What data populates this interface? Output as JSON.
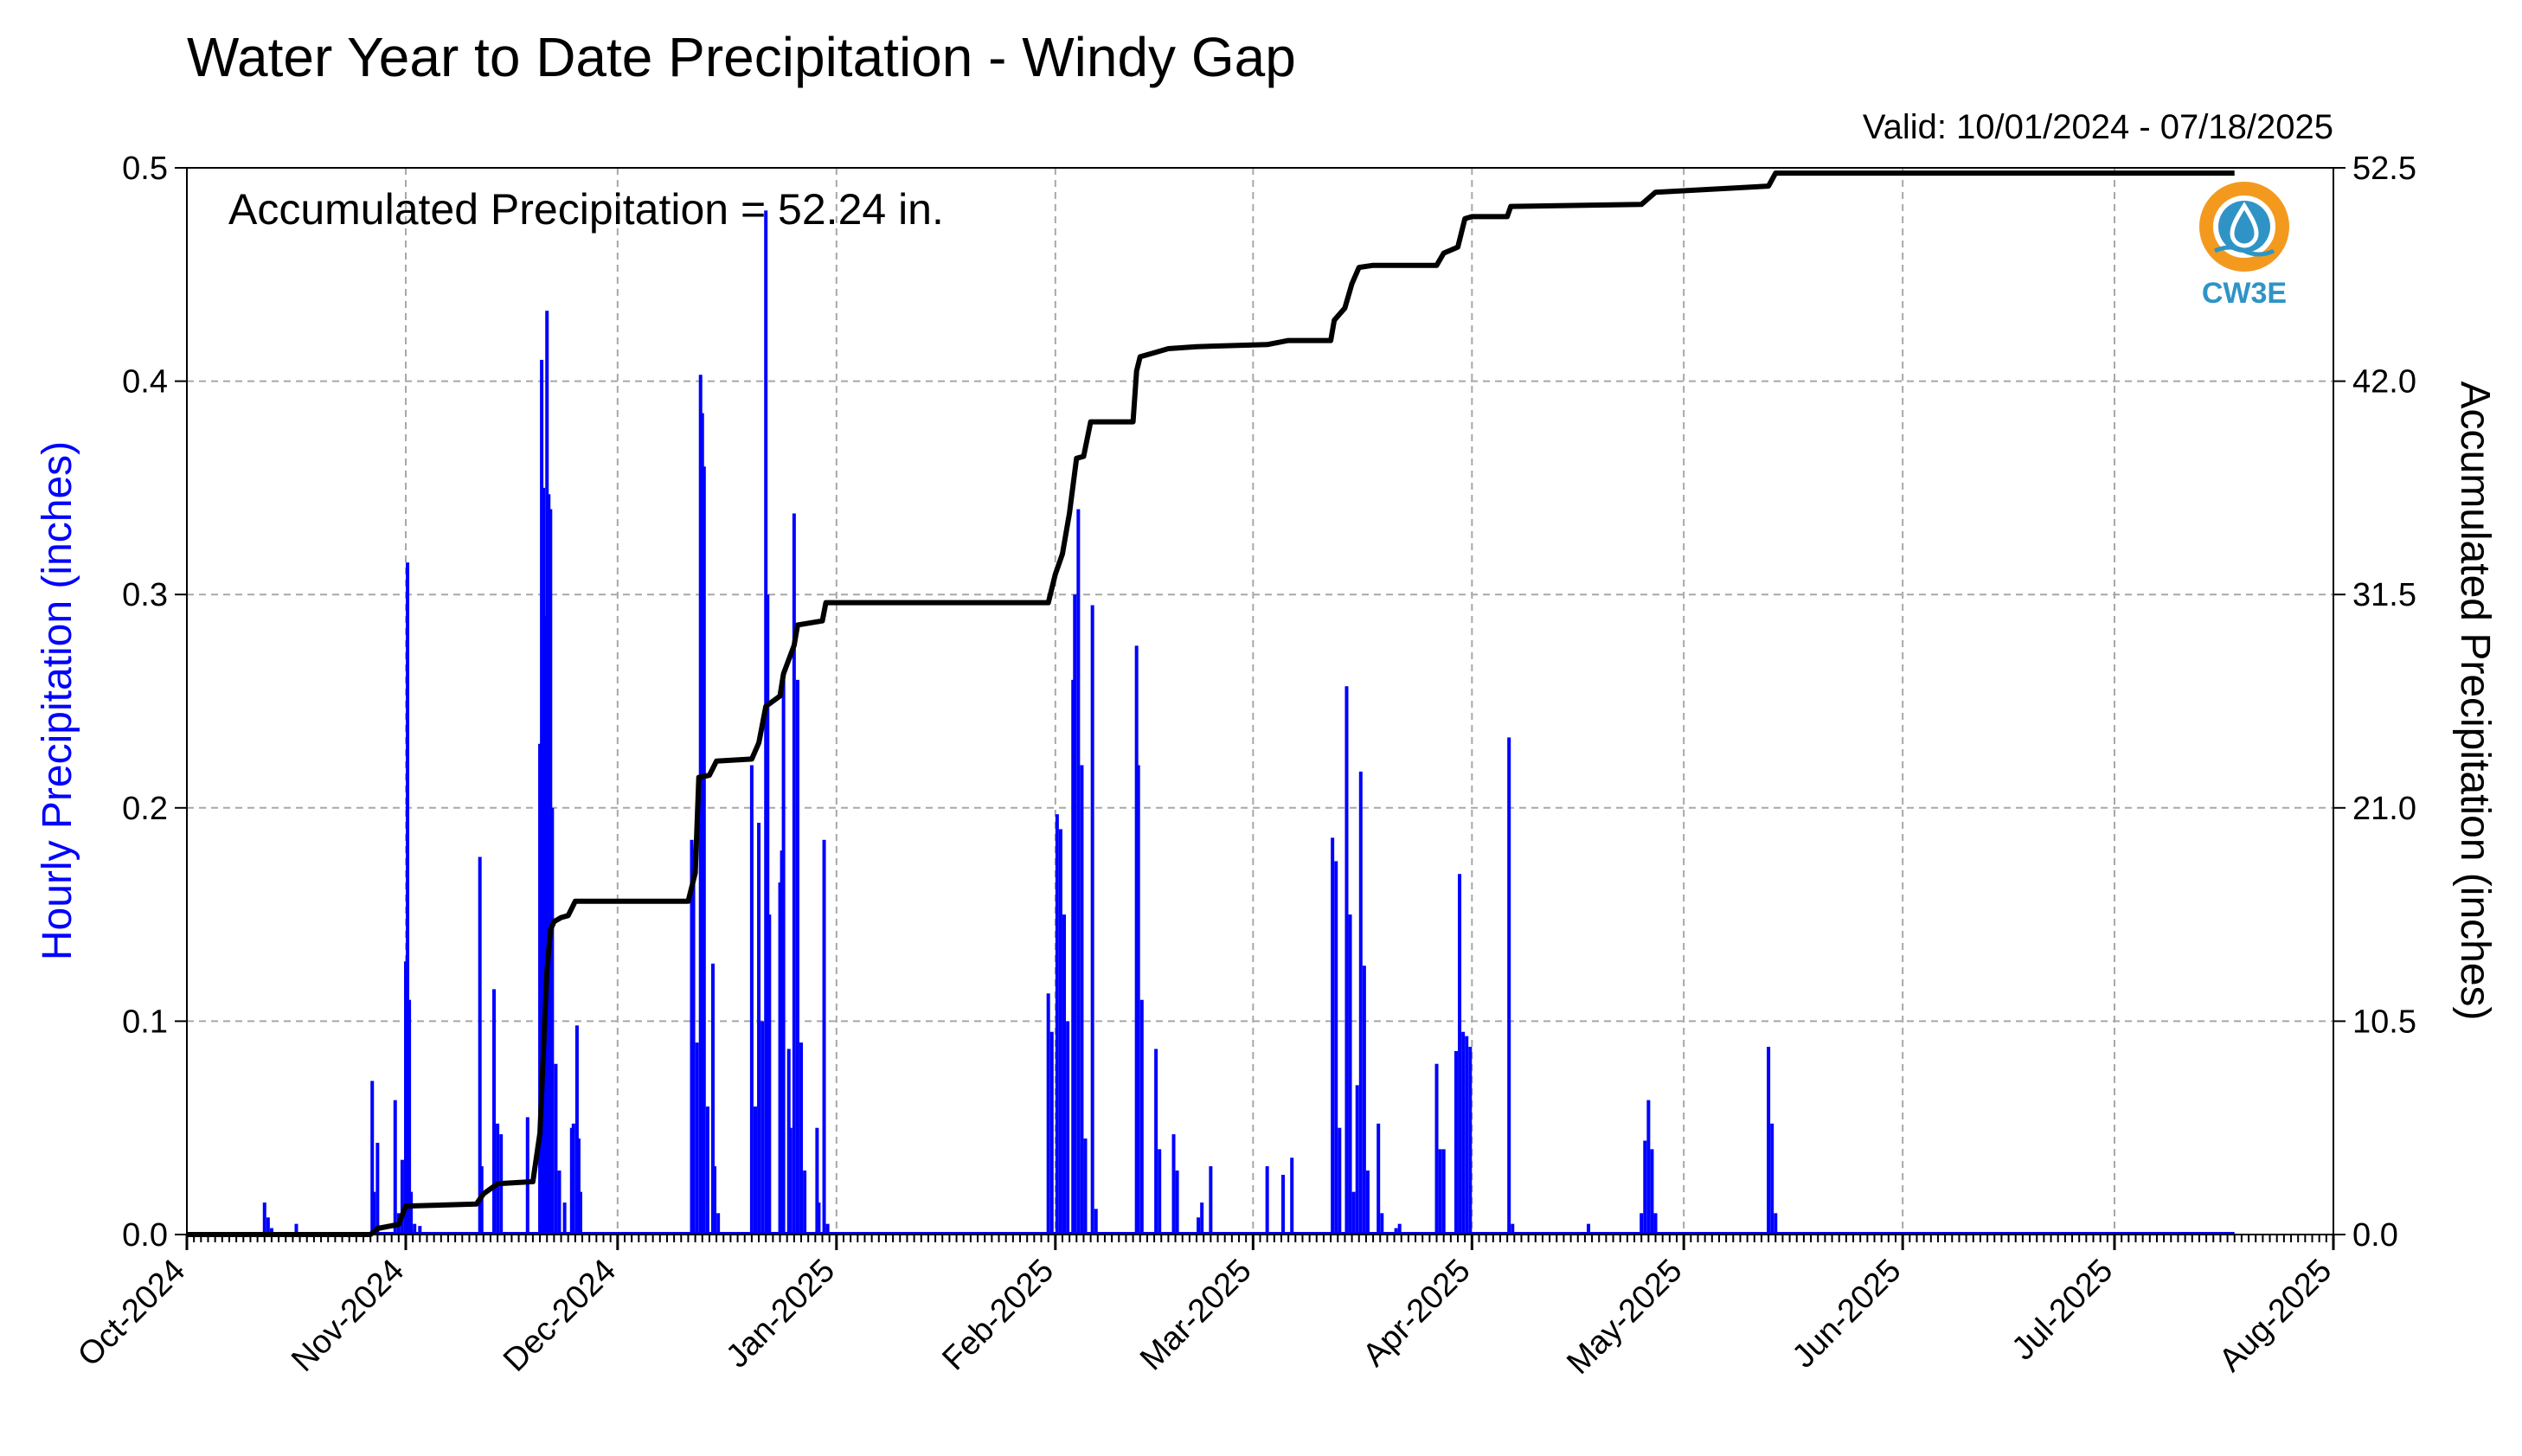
{
  "chart_data": {
    "type": "bar",
    "title": "Water Year to Date Precipitation - Windy Gap",
    "subtitle": "Valid: 10/01/2024 - 07/18/2025",
    "annotation": "Accumulated Precipitation = 52.24 in.",
    "ylabel": "Hourly Precipitation (inches)",
    "y2label": "Accumulated Precipitation (inches)",
    "ylim": [
      0,
      0.5
    ],
    "y2lim": [
      0,
      52.5
    ],
    "xlim": [
      "2024-10-01",
      "2025-08-01"
    ],
    "yticks": [
      "0.0",
      "0.1",
      "0.2",
      "0.3",
      "0.4",
      "0.5"
    ],
    "y2ticks": [
      "0.0",
      "10.5",
      "21.0",
      "31.5",
      "42.0",
      "52.5"
    ],
    "xticks": [
      {
        "date": "2024-10-01",
        "label": "Oct-2024"
      },
      {
        "date": "2024-11-01",
        "label": "Nov-2024"
      },
      {
        "date": "2024-12-01",
        "label": "Dec-2024"
      },
      {
        "date": "2025-01-01",
        "label": "Jan-2025"
      },
      {
        "date": "2025-02-01",
        "label": "Feb-2025"
      },
      {
        "date": "2025-03-01",
        "label": "Mar-2025"
      },
      {
        "date": "2025-04-01",
        "label": "Apr-2025"
      },
      {
        "date": "2025-05-01",
        "label": "May-2025"
      },
      {
        "date": "2025-06-01",
        "label": "Jun-2025"
      },
      {
        "date": "2025-07-01",
        "label": "Jul-2025"
      },
      {
        "date": "2025-08-01",
        "label": "Aug-2025"
      }
    ],
    "grid": true,
    "series": [
      {
        "style": "bars",
        "color": "#0000ff",
        "axis": "left",
        "points": [
          [
            "2024-10-12T00",
            0.015
          ],
          [
            "2024-10-12T12",
            0.008
          ],
          [
            "2024-10-13T00",
            0.003
          ],
          [
            "2024-10-16T12",
            0.005
          ],
          [
            "2024-10-27T06",
            0.072
          ],
          [
            "2024-10-27T12",
            0.02
          ],
          [
            "2024-10-28T00",
            0.043
          ],
          [
            "2024-10-30T12",
            0.063
          ],
          [
            "2024-10-31T00",
            0.01
          ],
          [
            "2024-10-31T12",
            0.035
          ],
          [
            "2024-11-01T00",
            0.128
          ],
          [
            "2024-11-01T06",
            0.315
          ],
          [
            "2024-11-01T12",
            0.11
          ],
          [
            "2024-11-01T18",
            0.02
          ],
          [
            "2024-11-02T06",
            0.005
          ],
          [
            "2024-11-03T00",
            0.004
          ],
          [
            "2024-11-11T12",
            0.177
          ],
          [
            "2024-11-11T18",
            0.032
          ],
          [
            "2024-11-13T12",
            0.115
          ],
          [
            "2024-11-14T00",
            0.052
          ],
          [
            "2024-11-14T12",
            0.047
          ],
          [
            "2024-11-18T06",
            0.055
          ],
          [
            "2024-11-20T00",
            0.23
          ],
          [
            "2024-11-20T06",
            0.41
          ],
          [
            "2024-11-20T12",
            0.35
          ],
          [
            "2024-11-20T18",
            0.29
          ],
          [
            "2024-11-21T00",
            0.433
          ],
          [
            "2024-11-21T06",
            0.347
          ],
          [
            "2024-11-21T12",
            0.34
          ],
          [
            "2024-11-21T18",
            0.2
          ],
          [
            "2024-11-22T06",
            0.08
          ],
          [
            "2024-11-22T18",
            0.03
          ],
          [
            "2024-11-23T12",
            0.015
          ],
          [
            "2024-11-24T12",
            0.05
          ],
          [
            "2024-11-24T18",
            0.052
          ],
          [
            "2024-11-25T06",
            0.098
          ],
          [
            "2024-11-25T12",
            0.045
          ],
          [
            "2024-11-25T18",
            0.02
          ],
          [
            "2024-12-11T12",
            0.185
          ],
          [
            "2024-12-11T18",
            0.17
          ],
          [
            "2024-12-12T06",
            0.09
          ],
          [
            "2024-12-12T18",
            0.403
          ],
          [
            "2024-12-13T00",
            0.385
          ],
          [
            "2024-12-13T06",
            0.36
          ],
          [
            "2024-12-13T18",
            0.06
          ],
          [
            "2024-12-14T12",
            0.127
          ],
          [
            "2024-12-14T18",
            0.032
          ],
          [
            "2024-12-15T06",
            0.01
          ],
          [
            "2024-12-20T00",
            0.22
          ],
          [
            "2024-12-20T12",
            0.06
          ],
          [
            "2024-12-21T00",
            0.193
          ],
          [
            "2024-12-21T12",
            0.1
          ],
          [
            "2024-12-22T00",
            0.48
          ],
          [
            "2024-12-22T06",
            0.3
          ],
          [
            "2024-12-22T12",
            0.15
          ],
          [
            "2024-12-24T00",
            0.165
          ],
          [
            "2024-12-24T06",
            0.18
          ],
          [
            "2024-12-24T12",
            0.26
          ],
          [
            "2024-12-25T06",
            0.087
          ],
          [
            "2024-12-25T12",
            0.05
          ],
          [
            "2024-12-26T00",
            0.338
          ],
          [
            "2024-12-26T12",
            0.26
          ],
          [
            "2024-12-27T00",
            0.09
          ],
          [
            "2024-12-27T12",
            0.03
          ],
          [
            "2024-12-29T06",
            0.05
          ],
          [
            "2024-12-29T12",
            0.015
          ],
          [
            "2024-12-30T06",
            0.185
          ],
          [
            "2024-12-30T18",
            0.005
          ],
          [
            "2025-01-31T00",
            0.113
          ],
          [
            "2025-01-31T12",
            0.095
          ],
          [
            "2025-02-01T06",
            0.197
          ],
          [
            "2025-02-01T18",
            0.19
          ],
          [
            "2025-02-02T06",
            0.15
          ],
          [
            "2025-02-02T18",
            0.1
          ],
          [
            "2025-02-03T12",
            0.26
          ],
          [
            "2025-02-03T18",
            0.3
          ],
          [
            "2025-02-04T06",
            0.34
          ],
          [
            "2025-02-04T18",
            0.22
          ],
          [
            "2025-02-05T06",
            0.045
          ],
          [
            "2025-02-06T06",
            0.295
          ],
          [
            "2025-02-06T18",
            0.012
          ],
          [
            "2025-02-12T12",
            0.276
          ],
          [
            "2025-02-12T18",
            0.22
          ],
          [
            "2025-02-13T06",
            0.11
          ],
          [
            "2025-02-15T06",
            0.087
          ],
          [
            "2025-02-15T18",
            0.04
          ],
          [
            "2025-02-17T18",
            0.047
          ],
          [
            "2025-02-18T06",
            0.03
          ],
          [
            "2025-02-21T06",
            0.008
          ],
          [
            "2025-02-21T18",
            0.015
          ],
          [
            "2025-02-23T00",
            0.032
          ],
          [
            "2025-03-03T00",
            0.032
          ],
          [
            "2025-03-05T06",
            0.028
          ],
          [
            "2025-03-06T12",
            0.036
          ],
          [
            "2025-03-12T06",
            0.186
          ],
          [
            "2025-03-12T18",
            0.175
          ],
          [
            "2025-03-13T06",
            0.05
          ],
          [
            "2025-03-14T06",
            0.257
          ],
          [
            "2025-03-14T18",
            0.15
          ],
          [
            "2025-03-15T06",
            0.02
          ],
          [
            "2025-03-15T18",
            0.07
          ],
          [
            "2025-03-16T06",
            0.217
          ],
          [
            "2025-03-16T18",
            0.126
          ],
          [
            "2025-03-17T06",
            0.03
          ],
          [
            "2025-03-18T18",
            0.052
          ],
          [
            "2025-03-19T06",
            0.01
          ],
          [
            "2025-03-21T06",
            0.003
          ],
          [
            "2025-03-21T18",
            0.005
          ],
          [
            "2025-03-27T00",
            0.08
          ],
          [
            "2025-03-27T12",
            0.04
          ],
          [
            "2025-03-28T00",
            0.04
          ],
          [
            "2025-03-29T18",
            0.086
          ],
          [
            "2025-03-30T06",
            0.169
          ],
          [
            "2025-03-30T18",
            0.095
          ],
          [
            "2025-03-31T06",
            0.093
          ],
          [
            "2025-03-31T18",
            0.088
          ],
          [
            "2025-04-06T06",
            0.233
          ],
          [
            "2025-04-06T18",
            0.005
          ],
          [
            "2025-04-17T12",
            0.005
          ],
          [
            "2025-04-25T00",
            0.01
          ],
          [
            "2025-04-25T12",
            0.044
          ],
          [
            "2025-04-26T00",
            0.063
          ],
          [
            "2025-04-26T12",
            0.04
          ],
          [
            "2025-04-27T00",
            0.01
          ],
          [
            "2025-05-13T00",
            0.088
          ],
          [
            "2025-05-13T12",
            0.052
          ],
          [
            "2025-05-14T00",
            0.01
          ]
        ]
      },
      {
        "style": "line",
        "color": "#000000",
        "axis": "right",
        "points": [
          [
            "2024-10-01",
            0.0
          ],
          [
            "2024-10-27",
            0.0
          ],
          [
            "2024-10-28",
            0.3
          ],
          [
            "2024-10-31",
            0.5
          ],
          [
            "2024-11-01",
            1.4
          ],
          [
            "2024-11-11",
            1.5
          ],
          [
            "2024-11-12",
            2.0
          ],
          [
            "2024-11-14",
            2.5
          ],
          [
            "2024-11-19",
            2.6
          ],
          [
            "2024-11-20",
            5.0
          ],
          [
            "2024-11-20T12",
            9.0
          ],
          [
            "2024-11-21",
            13.0
          ],
          [
            "2024-11-21T12",
            15.0
          ],
          [
            "2024-11-22",
            15.4
          ],
          [
            "2024-11-23",
            15.6
          ],
          [
            "2024-11-24",
            15.7
          ],
          [
            "2024-11-25",
            16.4
          ],
          [
            "2024-12-11",
            16.4
          ],
          [
            "2024-12-12",
            17.8
          ],
          [
            "2024-12-12T12",
            22.5
          ],
          [
            "2024-12-14",
            22.6
          ],
          [
            "2024-12-15",
            23.3
          ],
          [
            "2024-12-20",
            23.4
          ],
          [
            "2024-12-21",
            24.2
          ],
          [
            "2024-12-22",
            26.0
          ],
          [
            "2024-12-24",
            26.5
          ],
          [
            "2024-12-24T12",
            27.6
          ],
          [
            "2024-12-26",
            29.0
          ],
          [
            "2024-12-26T12",
            30.0
          ],
          [
            "2024-12-30",
            30.2
          ],
          [
            "2024-12-30T12",
            31.1
          ],
          [
            "2025-01-31",
            31.1
          ],
          [
            "2025-02-01",
            32.5
          ],
          [
            "2025-02-02",
            33.5
          ],
          [
            "2025-02-03",
            35.5
          ],
          [
            "2025-02-04",
            38.2
          ],
          [
            "2025-02-05",
            38.3
          ],
          [
            "2025-02-06",
            40.0
          ],
          [
            "2025-02-12",
            40.0
          ],
          [
            "2025-02-12T12",
            42.5
          ],
          [
            "2025-02-13",
            43.2
          ],
          [
            "2025-02-15",
            43.4
          ],
          [
            "2025-02-17",
            43.6
          ],
          [
            "2025-02-21",
            43.7
          ],
          [
            "2025-03-03",
            43.8
          ],
          [
            "2025-03-06",
            44.0
          ],
          [
            "2025-03-12",
            44.0
          ],
          [
            "2025-03-12T12",
            45.0
          ],
          [
            "2025-03-14",
            45.6
          ],
          [
            "2025-03-15",
            46.8
          ],
          [
            "2025-03-16",
            47.6
          ],
          [
            "2025-03-18",
            47.7
          ],
          [
            "2025-03-27",
            47.7
          ],
          [
            "2025-03-28",
            48.3
          ],
          [
            "2025-03-30",
            48.6
          ],
          [
            "2025-03-31",
            50.0
          ],
          [
            "2025-04-01",
            50.1
          ],
          [
            "2025-04-06",
            50.1
          ],
          [
            "2025-04-06T12",
            50.6
          ],
          [
            "2025-04-25",
            50.7
          ],
          [
            "2025-04-27",
            51.3
          ],
          [
            "2025-05-13",
            51.6
          ],
          [
            "2025-05-14",
            52.24
          ],
          [
            "2025-07-18",
            52.24
          ]
        ]
      }
    ]
  },
  "logo": {
    "text": "CW3E",
    "ring_color": "#f39a1e",
    "core_color": "#2f94c5",
    "text_color": "#2f94c5"
  }
}
